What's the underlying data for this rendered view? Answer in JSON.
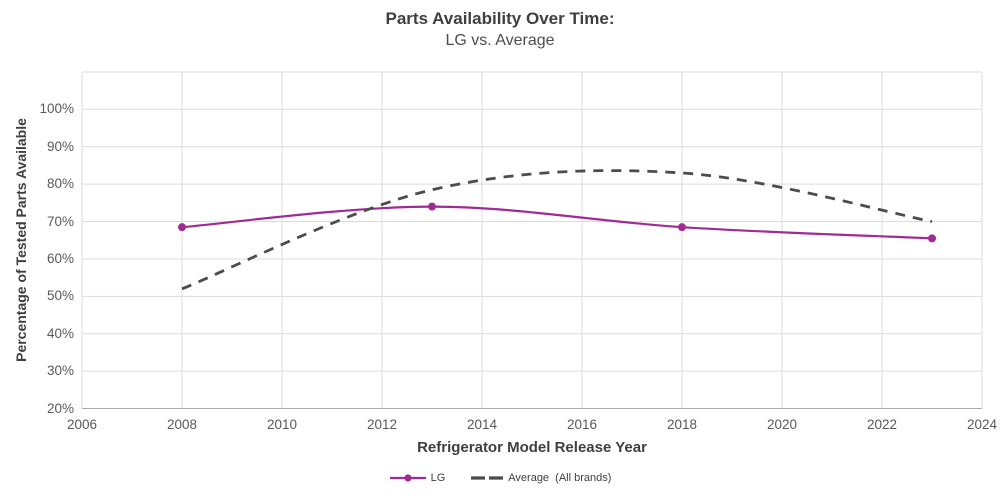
{
  "title": {
    "line1": "Parts Availability Over Time:",
    "line2": "LG vs. Average"
  },
  "chart_data": {
    "type": "line",
    "title": "Parts Availability Over Time: LG vs. Average",
    "xlabel": "Refrigerator Model Release Year",
    "ylabel": "Percentage of Tested Parts Available",
    "x": [
      2008,
      2013,
      2018,
      2023
    ],
    "series": [
      {
        "key": "lg",
        "name": "LG",
        "values": [
          68.5,
          74,
          68.5,
          65.5
        ],
        "color": "#A02B93",
        "line_style": "solid",
        "line_width": 2.2,
        "marker": "circle",
        "smooth": true
      },
      {
        "key": "average",
        "name": "Average  (All brands)",
        "values": [
          52,
          78.5,
          83,
          70
        ],
        "color": "#4C4C4C",
        "line_style": "dashed",
        "line_width": 2.8,
        "marker": "none",
        "smooth": true
      }
    ],
    "x_axis": {
      "min": 2006,
      "max": 2024,
      "tick_step": 2
    },
    "y_axis": {
      "min": 20,
      "max": 110,
      "tick_step": 10,
      "max_labeled_tick": 100,
      "tick_suffix": "%"
    },
    "grid": true,
    "legend_position": "bottom"
  },
  "legend": {
    "items": [
      {
        "label": "LG"
      },
      {
        "label": "Average  (All brands)"
      }
    ]
  },
  "colors": {
    "lg_series": "#A02B93",
    "average_series": "#4C4C4C",
    "gridline": "#DCDCDC",
    "axis_line": "#ACACAC",
    "tick_text": "#595959",
    "title_text": "#3F3F3F",
    "subtitle_text": "#4D4D4D"
  }
}
